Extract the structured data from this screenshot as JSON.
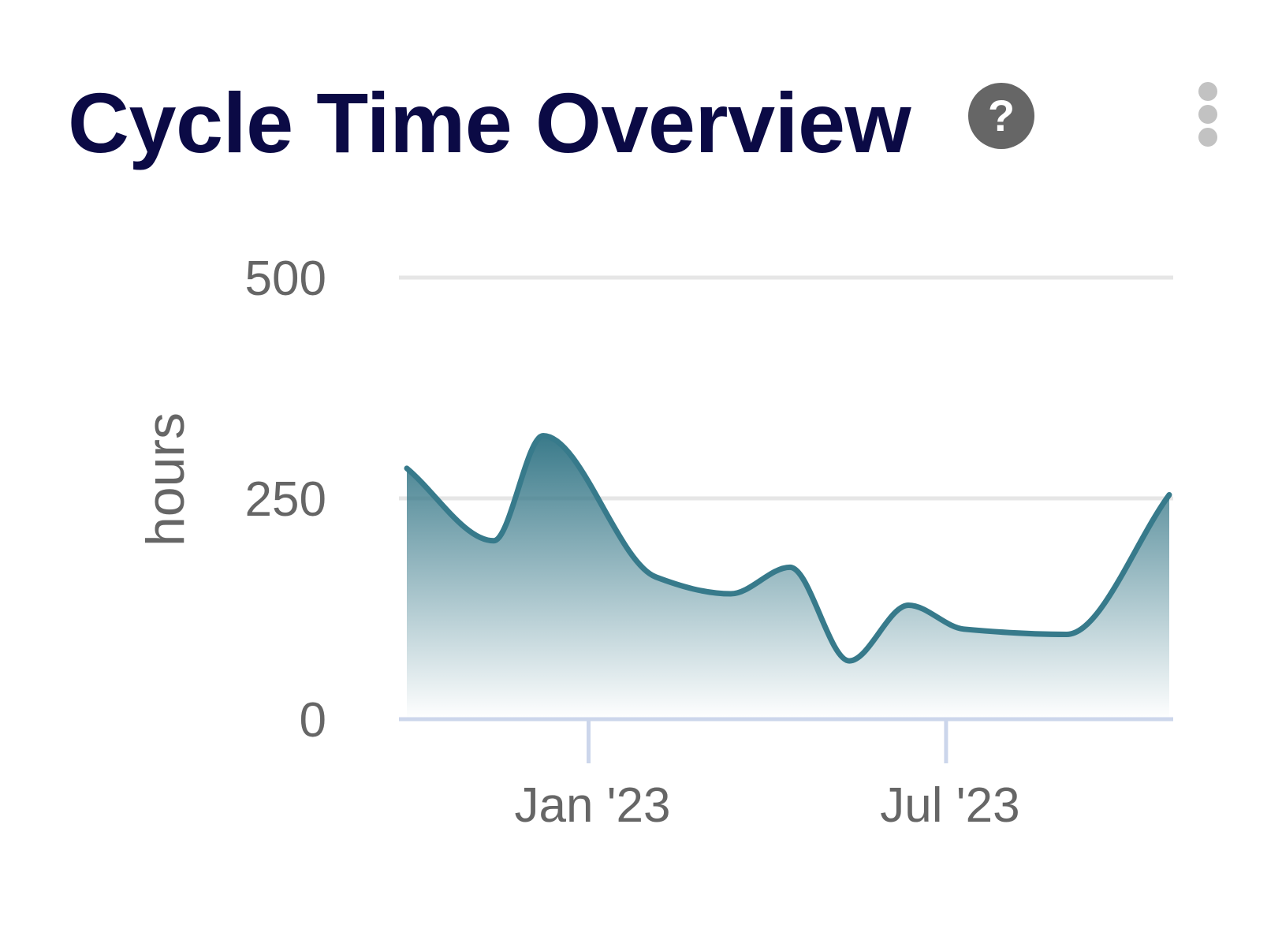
{
  "header": {
    "title": "Cycle Time Overview",
    "help_icon": "question-mark-icon",
    "help_glyph": "?",
    "menu_icon": "vertical-ellipsis-icon"
  },
  "colors": {
    "title": "#0b0a45",
    "line": "#377a8b",
    "area_top": "#3a7a8a",
    "grid": "#e6e6e6",
    "axis": "#ccd6eb",
    "tick_text": "#666666",
    "help_bg": "#666666"
  },
  "chart_data": {
    "type": "area",
    "title": "",
    "xlabel": "",
    "ylabel": "hours",
    "ylim": [
      0,
      500
    ],
    "yticks": [
      0,
      250,
      500
    ],
    "ytick_labels": [
      "0",
      "250",
      "500"
    ],
    "xticks": [
      {
        "date": "2023-01-01",
        "label": "Jan '23"
      },
      {
        "date": "2023-07-01",
        "label": "Jul '23"
      }
    ],
    "xlim": [
      "2022-09-27",
      "2023-10-24"
    ],
    "grid": true,
    "legend": false,
    "series": [
      {
        "x": [
          "2022-10-01",
          "2022-11-14",
          "2022-12-09",
          "2023-02-04",
          "2023-03-14",
          "2023-04-13",
          "2023-05-13",
          "2023-06-12",
          "2023-07-10",
          "2023-08-31",
          "2023-10-22"
        ],
        "values": [
          284,
          202,
          321,
          161,
          142,
          172,
          66,
          129,
          102,
          96,
          254
        ]
      }
    ]
  }
}
